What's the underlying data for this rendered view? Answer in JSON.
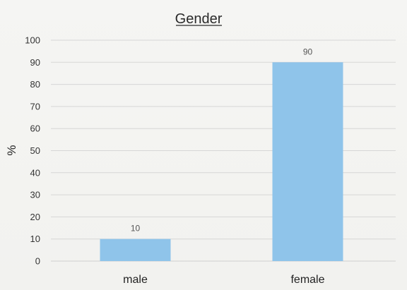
{
  "chart_data": {
    "type": "bar",
    "title": "Gender",
    "xlabel": "",
    "ylabel": "%",
    "ylim": [
      0,
      100
    ],
    "yticks": [
      0,
      10,
      20,
      30,
      40,
      50,
      60,
      70,
      80,
      90,
      100
    ],
    "categories": [
      "male",
      "female"
    ],
    "values": [
      10,
      90
    ],
    "data_labels": [
      "10",
      "90"
    ],
    "grid": true,
    "bar_color": "#8fc4ea"
  }
}
